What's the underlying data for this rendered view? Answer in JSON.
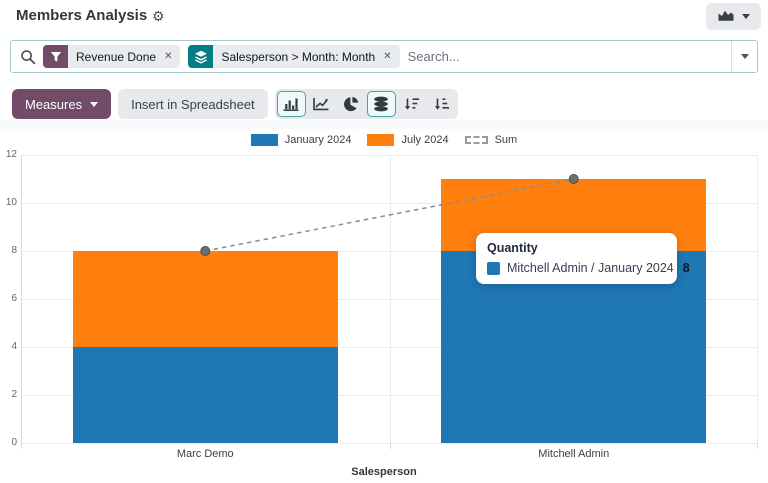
{
  "header": {
    "title": "Members Analysis",
    "gear_glyph": "⚙"
  },
  "view_switcher": {
    "icon": "area-chart-icon"
  },
  "search": {
    "placeholder": "Search...",
    "close_glyph": "✕",
    "facets": [
      {
        "kind": "filter",
        "label": "Revenue Done",
        "icon": "filter-icon",
        "color": "#714B67"
      },
      {
        "kind": "groupby",
        "label": "Salesperson > Month: Month",
        "icon": "layers-icon",
        "color": "#017e84"
      }
    ]
  },
  "toolbar": {
    "measures_label": "Measures",
    "insert_label": "Insert in Spreadsheet",
    "chart_type_buttons": [
      {
        "name": "bar-chart",
        "active": true
      },
      {
        "name": "line-chart",
        "active": false
      },
      {
        "name": "pie-chart",
        "active": false
      },
      {
        "name": "stacked",
        "active": true
      },
      {
        "name": "sort-desc",
        "active": false
      },
      {
        "name": "sort-asc",
        "active": false
      }
    ]
  },
  "chart_data": {
    "type": "bar",
    "stacked": true,
    "categories": [
      "Marc Demo",
      "Mitchell Admin"
    ],
    "series": [
      {
        "name": "January 2024",
        "type": "bar",
        "color": "#1f77b4",
        "values": [
          4,
          8
        ]
      },
      {
        "name": "July 2024",
        "type": "bar",
        "color": "#ff7f0e",
        "values": [
          4,
          3
        ]
      },
      {
        "name": "Sum",
        "type": "line",
        "dashed": true,
        "color": "#8c8c8c",
        "values": [
          8,
          11
        ]
      }
    ],
    "xlabel": "Salesperson",
    "ylim": [
      0,
      12
    ],
    "yticks": [
      0,
      2,
      4,
      6,
      8,
      10,
      12
    ],
    "legend_position": "top",
    "grid": true
  },
  "tooltip": {
    "title": "Quantity",
    "label": "Mitchell Admin / January 2024",
    "value": "8",
    "swatch_color": "#1f77b4"
  },
  "colors": {
    "accent": "#714B67",
    "teal": "#017e84",
    "active_button_border": "#4b9fa5",
    "bar_blue": "#1f77b4",
    "bar_orange": "#ff7f0e"
  }
}
